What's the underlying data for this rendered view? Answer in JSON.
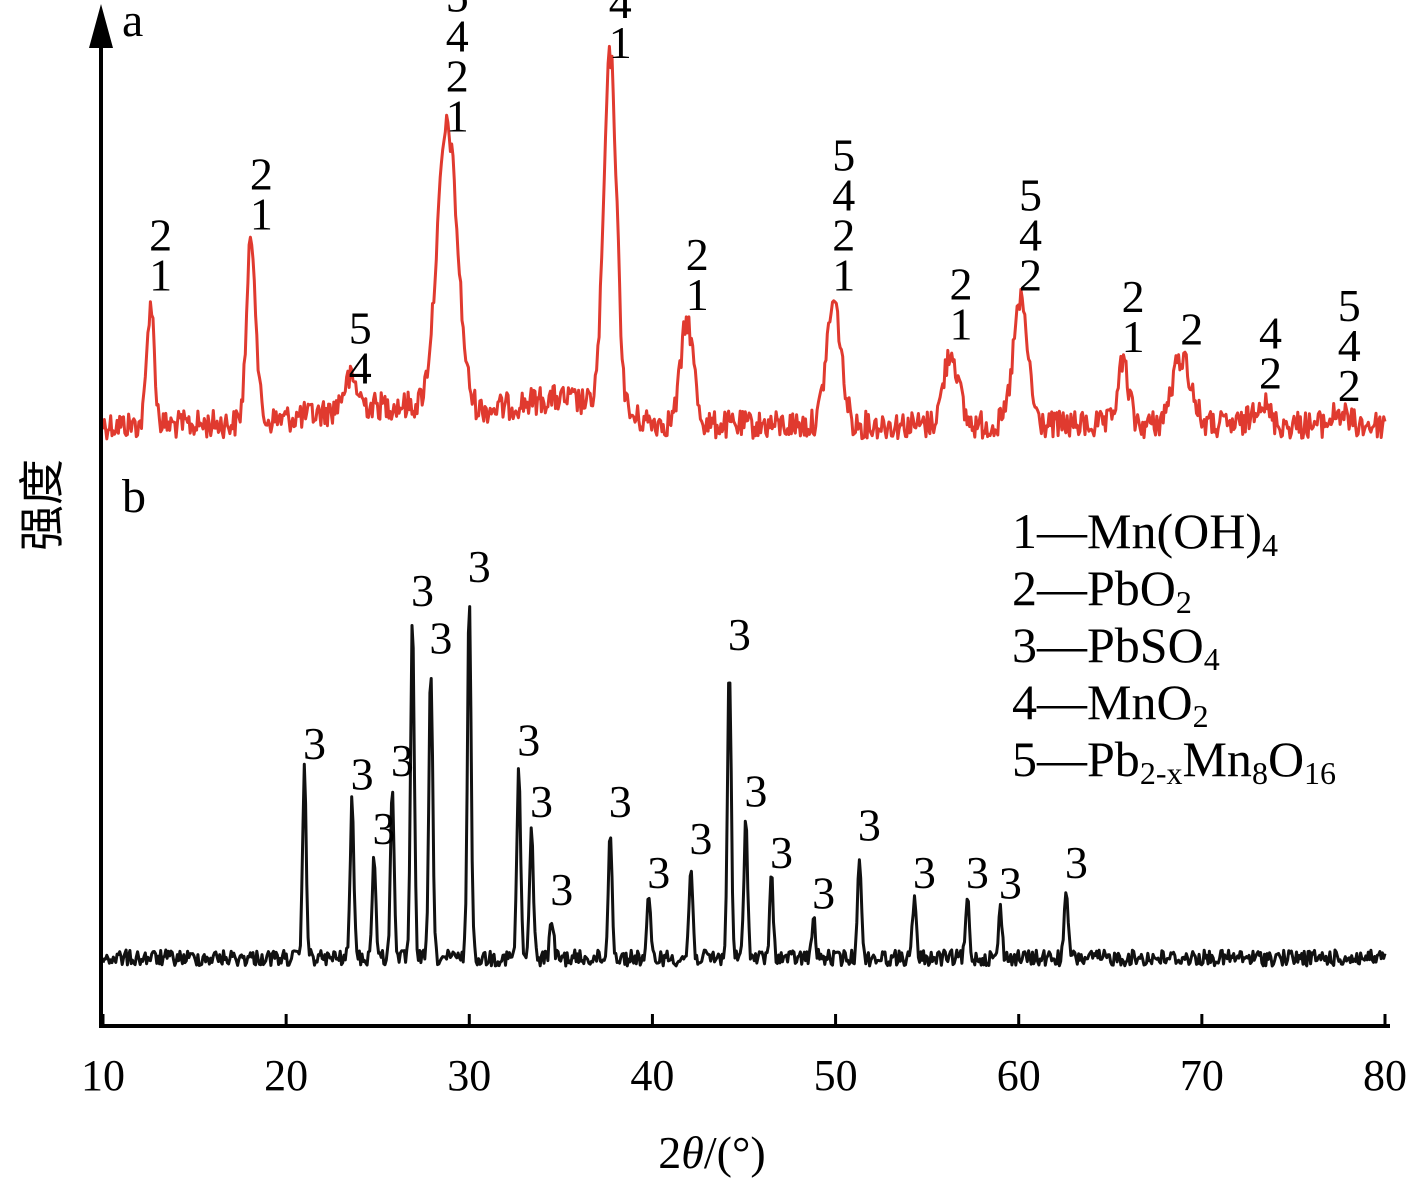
{
  "chart_data": {
    "type": "line",
    "xlabel": "2θ/(°)",
    "ylabel": "强度",
    "xlim": [
      10,
      80
    ],
    "x_ticks": [
      "10",
      "20",
      "30",
      "40",
      "50",
      "60",
      "70",
      "80"
    ],
    "grid": false,
    "legend_position": "right",
    "colors": {
      "a": "#e03a2f",
      "b": "#111111"
    },
    "legend": [
      {
        "id": "1",
        "dash": "—",
        "name": "Mn(OH)",
        "sub": "4"
      },
      {
        "id": "2",
        "dash": "—",
        "name": "PbO",
        "sub": "2"
      },
      {
        "id": "3",
        "dash": "—",
        "name": "PbSO",
        "sub": "4"
      },
      {
        "id": "4",
        "dash": "—",
        "name": "MnO",
        "sub": "2"
      },
      {
        "id": "5",
        "dash": "—",
        "name": "Pb",
        "sub": "2-x",
        "name2": "Mn",
        "sub2": "8",
        "name3": "O",
        "sub3": "16"
      }
    ],
    "series": [
      {
        "name": "a",
        "peaks": [
          {
            "x": 12.6,
            "h": 0.5,
            "w": 0.2,
            "labels": [
              "1",
              "2"
            ]
          },
          {
            "x": 18.1,
            "h": 0.75,
            "w": 0.25,
            "labels": [
              "1",
              "2"
            ]
          },
          {
            "x": 23.5,
            "h": 0.12,
            "w": 0.4,
            "labels": [
              "4",
              "5"
            ]
          },
          {
            "x": 28.8,
            "h": 1.15,
            "w": 0.55,
            "labels": [
              "1",
              "2",
              "4",
              "5"
            ]
          },
          {
            "x": 37.7,
            "h": 1.45,
            "w": 0.35,
            "labels": [
              "1",
              "4"
            ]
          },
          {
            "x": 41.9,
            "h": 0.42,
            "w": 0.35,
            "labels": [
              "1",
              "2"
            ]
          },
          {
            "x": 49.9,
            "h": 0.5,
            "w": 0.4,
            "labels": [
              "1",
              "2",
              "4",
              "5"
            ]
          },
          {
            "x": 56.3,
            "h": 0.3,
            "w": 0.4,
            "labels": [
              "1",
              "2"
            ]
          },
          {
            "x": 60.1,
            "h": 0.5,
            "w": 0.4,
            "labels": [
              "2",
              "4",
              "5"
            ]
          },
          {
            "x": 65.7,
            "h": 0.25,
            "w": 0.3,
            "labels": [
              "1",
              "2"
            ]
          },
          {
            "x": 68.9,
            "h": 0.28,
            "w": 0.5,
            "labels": [
              "2"
            ]
          },
          {
            "x": 73.2,
            "h": 0.1,
            "w": 0.4,
            "labels": [
              "2",
              "4"
            ]
          },
          {
            "x": 77.5,
            "h": 0.05,
            "w": 0.4,
            "labels": [
              "2",
              "4",
              "5"
            ]
          }
        ]
      },
      {
        "name": "b",
        "peaks": [
          {
            "x": 21.0,
            "h": 0.55,
            "w": 0.1,
            "labels": [
              "3"
            ]
          },
          {
            "x": 23.6,
            "h": 0.46,
            "w": 0.1,
            "labels": [
              "3"
            ]
          },
          {
            "x": 24.8,
            "h": 0.3,
            "w": 0.1,
            "labels": [
              "3"
            ]
          },
          {
            "x": 25.8,
            "h": 0.5,
            "w": 0.1,
            "labels": [
              "3"
            ]
          },
          {
            "x": 26.9,
            "h": 1.0,
            "w": 0.1,
            "labels": [
              "3"
            ]
          },
          {
            "x": 27.9,
            "h": 0.86,
            "w": 0.1,
            "labels": [
              "3"
            ]
          },
          {
            "x": 30.0,
            "h": 1.07,
            "w": 0.1,
            "labels": [
              "3"
            ]
          },
          {
            "x": 32.7,
            "h": 0.56,
            "w": 0.1,
            "labels": [
              "3"
            ]
          },
          {
            "x": 33.4,
            "h": 0.38,
            "w": 0.1,
            "labels": [
              "3"
            ]
          },
          {
            "x": 34.5,
            "h": 0.12,
            "w": 0.1,
            "labels": [
              "3"
            ]
          },
          {
            "x": 37.7,
            "h": 0.38,
            "w": 0.1,
            "labels": [
              "3"
            ]
          },
          {
            "x": 39.8,
            "h": 0.17,
            "w": 0.1,
            "labels": [
              "3"
            ]
          },
          {
            "x": 42.1,
            "h": 0.27,
            "w": 0.1,
            "labels": [
              "3"
            ]
          },
          {
            "x": 44.2,
            "h": 0.87,
            "w": 0.1,
            "labels": [
              "3"
            ]
          },
          {
            "x": 45.1,
            "h": 0.41,
            "w": 0.1,
            "labels": [
              "3"
            ]
          },
          {
            "x": 46.5,
            "h": 0.23,
            "w": 0.1,
            "labels": [
              "3"
            ]
          },
          {
            "x": 48.8,
            "h": 0.11,
            "w": 0.1,
            "labels": [
              "3"
            ]
          },
          {
            "x": 51.3,
            "h": 0.31,
            "w": 0.1,
            "labels": [
              "3"
            ]
          },
          {
            "x": 54.3,
            "h": 0.17,
            "w": 0.1,
            "labels": [
              "3"
            ]
          },
          {
            "x": 57.2,
            "h": 0.17,
            "w": 0.1,
            "labels": [
              "3"
            ]
          },
          {
            "x": 59.0,
            "h": 0.14,
            "w": 0.1,
            "labels": [
              "3"
            ]
          },
          {
            "x": 62.6,
            "h": 0.2,
            "w": 0.1,
            "labels": [
              "3"
            ]
          }
        ]
      }
    ]
  }
}
